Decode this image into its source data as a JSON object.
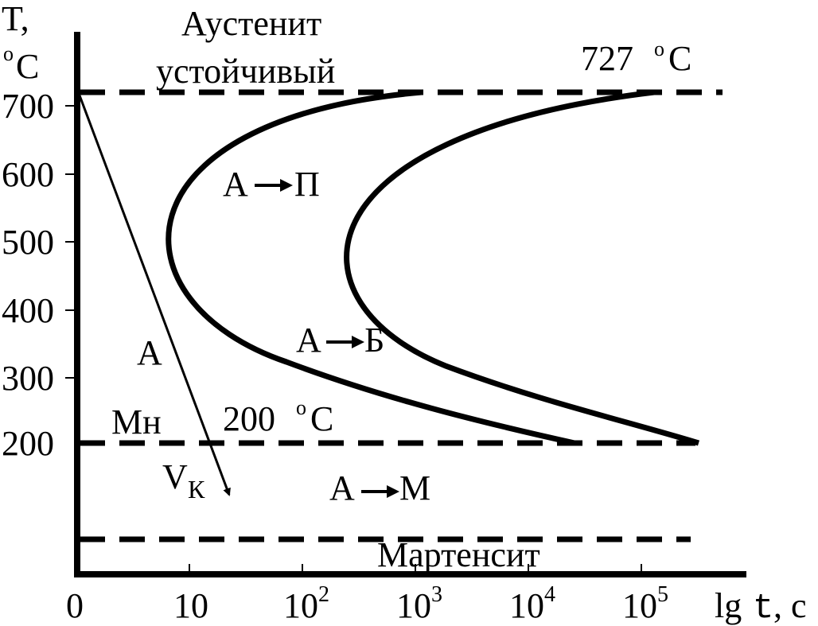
{
  "axes": {
    "y_title_main": "T,",
    "y_title_unit": "C",
    "y_title_degree": "o",
    "y_ticks": [
      "700",
      "600",
      "500",
      "400",
      "300",
      "200"
    ],
    "x_ticks": [
      {
        "base": "0",
        "exp": ""
      },
      {
        "base": "10",
        "exp": ""
      },
      {
        "base": "10",
        "exp": "2"
      },
      {
        "base": "10",
        "exp": "3"
      },
      {
        "base": "10",
        "exp": "4"
      },
      {
        "base": "10",
        "exp": "5"
      }
    ],
    "x_title_lg": "lg",
    "x_title_t": "t",
    "x_title_unit": ", с"
  },
  "labels": {
    "austenite_top": "Аустенит",
    "austenite_bottom": "устойчивый",
    "temp_727_value": "727",
    "temp_727_degree": "о",
    "temp_727_unit": "С",
    "a_to_p_left": "А",
    "a_to_p_right": "П",
    "a_to_b_left": "А",
    "a_to_b_right": "Б",
    "a_single": "А",
    "mn_base": "Мн",
    "temp_200_value": "200",
    "temp_200_degree": "о",
    "temp_200_unit": "С",
    "vk_base": "V",
    "vk_sub": "К",
    "a_to_m_left": "А",
    "a_to_m_right": "М",
    "martensite": "Мартенсит"
  },
  "colors": {
    "ink": "#000000",
    "background": "#ffffff"
  }
}
